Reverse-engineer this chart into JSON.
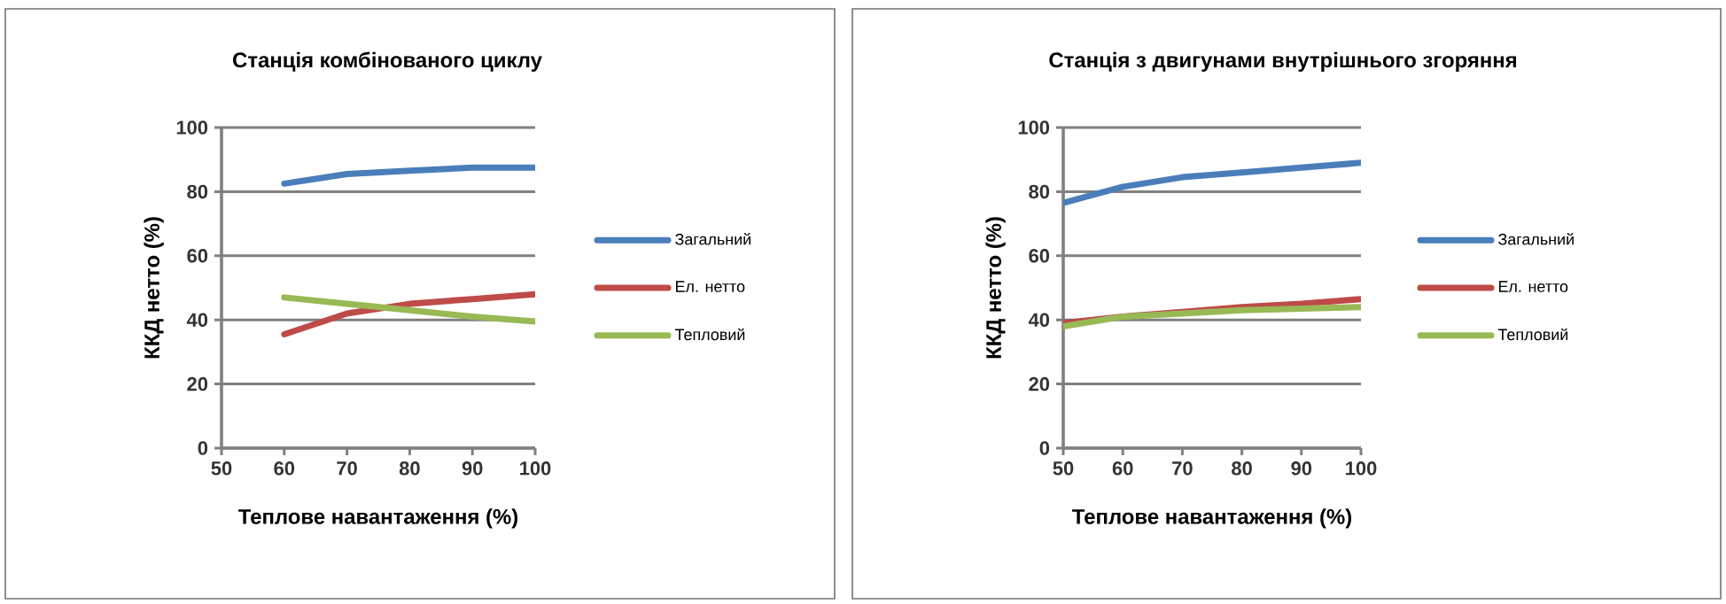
{
  "chart_data": [
    {
      "type": "line",
      "title": "Станція комбінованого циклу",
      "xlabel": "Теплове навантаження  (%)",
      "ylabel": "ККД нетто (%)",
      "x": [
        60,
        70,
        80,
        90,
        100
      ],
      "xlim": [
        50,
        100
      ],
      "xticks": [
        50,
        60,
        70,
        80,
        90,
        100
      ],
      "ylim": [
        0,
        100
      ],
      "yticks": [
        0,
        20,
        40,
        60,
        80,
        100
      ],
      "grid": "y",
      "legend": "right",
      "series": [
        {
          "name": "Загальний",
          "color": "#4a7ebb",
          "values": [
            82.5,
            85.5,
            86.5,
            87.5,
            87.5
          ]
        },
        {
          "name": "Ел. нетто",
          "color": "#be4b48",
          "values": [
            35.5,
            42,
            45,
            46.5,
            48
          ]
        },
        {
          "name": "Тепловий",
          "color": "#98b954",
          "values": [
            47,
            45,
            43,
            41,
            39.5
          ]
        }
      ]
    },
    {
      "type": "line",
      "title": "Станція з двигунами внутрішнього згоряння",
      "xlabel": "Теплове навантаження  (%)",
      "ylabel": "ККД нетто (%)",
      "x": [
        50,
        60,
        70,
        80,
        90,
        100
      ],
      "xlim": [
        50,
        100
      ],
      "xticks": [
        50,
        60,
        70,
        80,
        90,
        100
      ],
      "ylim": [
        0,
        100
      ],
      "yticks": [
        0,
        20,
        40,
        60,
        80,
        100
      ],
      "grid": "y",
      "legend": "right",
      "series": [
        {
          "name": "Загальний",
          "color": "#4a7ebb",
          "values": [
            76.5,
            81.5,
            84.5,
            86,
            87.5,
            89
          ]
        },
        {
          "name": "Ел. нетто",
          "color": "#be4b48",
          "values": [
            39,
            41,
            42.5,
            44,
            45,
            46.5
          ]
        },
        {
          "name": "Тепловий",
          "color": "#98b954",
          "values": [
            38,
            41,
            42,
            43,
            43.5,
            44
          ]
        }
      ]
    }
  ]
}
